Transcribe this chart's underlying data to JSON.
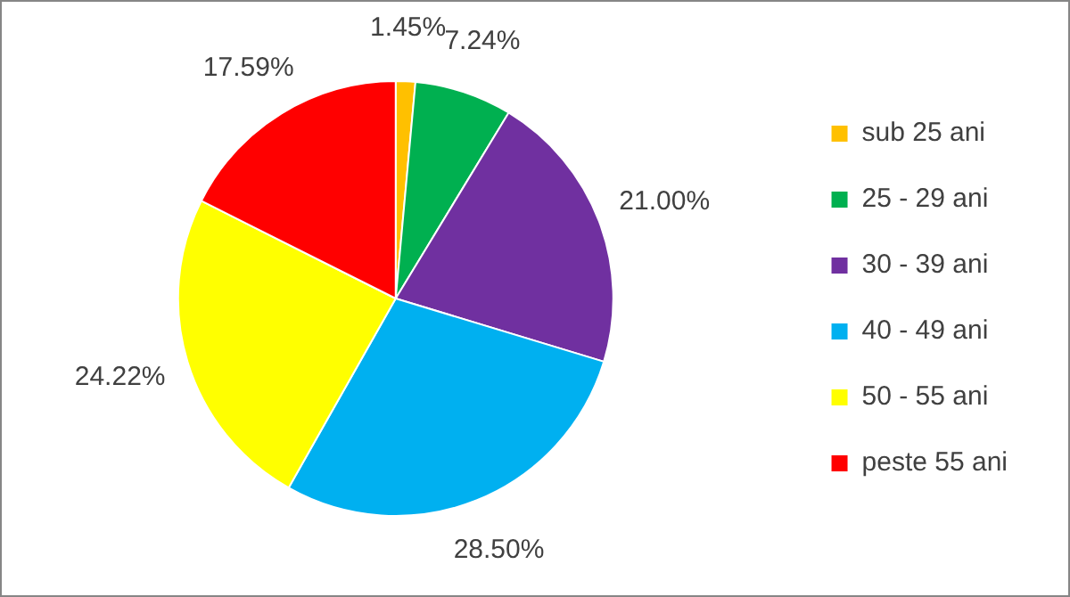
{
  "chart_data": {
    "type": "pie",
    "categories": [
      "sub 25 ani",
      "25 - 29 ani",
      "30 - 39 ani",
      "40 - 49 ani",
      "50 - 55 ani",
      "peste 55 ani"
    ],
    "values": [
      1.45,
      7.24,
      21.0,
      28.5,
      24.22,
      17.59
    ],
    "colors": [
      "#ffc000",
      "#00b050",
      "#7030a0",
      "#00b0f0",
      "#ffff00",
      "#ff0000"
    ],
    "value_labels": [
      "1.45%",
      "7.24%",
      "21.00%",
      "28.50%",
      "24.22%",
      "17.59%"
    ],
    "legend": "right"
  }
}
